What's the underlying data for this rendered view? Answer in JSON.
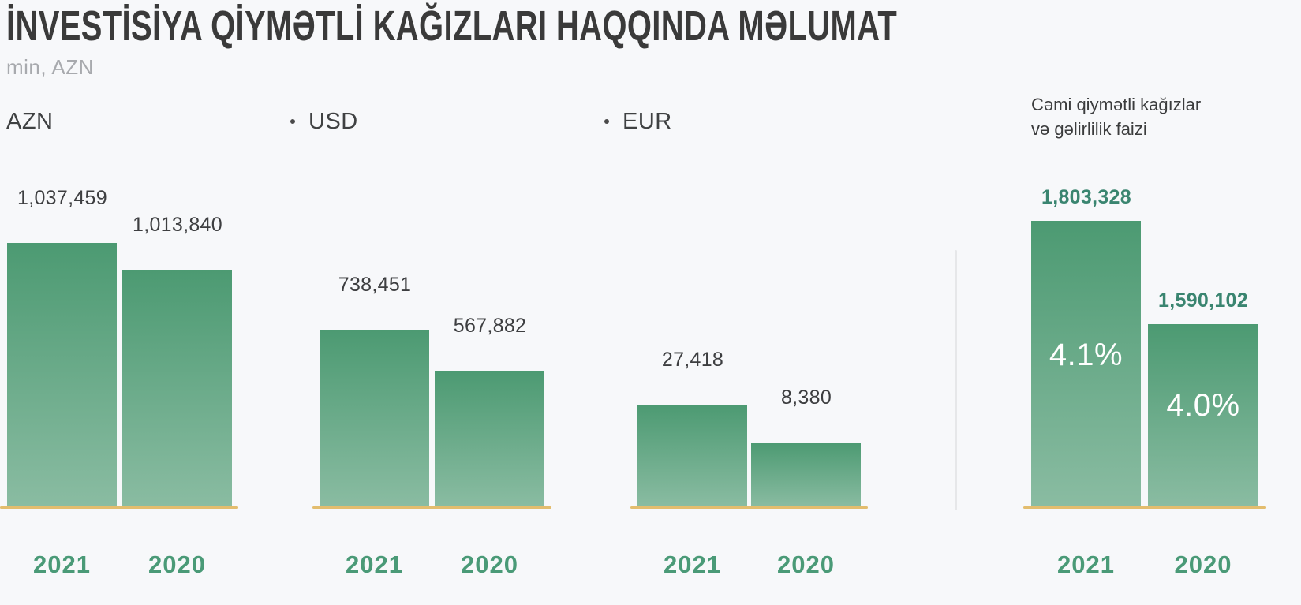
{
  "chart_data": {
    "type": "bar",
    "title": "İNVESTİSİYA QİYMƏTLİ KAĞIZLARI HAQQINDA MƏLUMAT",
    "units_label": "min, AZN",
    "categories": [
      "2021",
      "2020"
    ],
    "grid": false,
    "legend_position": "none",
    "groups": [
      {
        "label": "AZN",
        "has_bullet": false,
        "values": [
          1037459,
          1013840
        ],
        "value_labels": [
          "1,037,459",
          "1,013,840"
        ]
      },
      {
        "label": "USD",
        "has_bullet": true,
        "values": [
          738451,
          567882
        ],
        "value_labels": [
          "738,451",
          "567,882"
        ]
      },
      {
        "label": "EUR",
        "has_bullet": true,
        "values": [
          27418,
          8380
        ],
        "value_labels": [
          "27,418",
          "8,380"
        ]
      },
      {
        "label": "Cəmi qiymətli kağızlar və gəlirlilik faizi",
        "title_line1": "Cəmi qiymətli kağızlar",
        "title_line2": "və gəlirlilik faizi",
        "values": [
          1803328,
          1590102
        ],
        "value_labels": [
          "1,803,328",
          "1,590,102"
        ],
        "yield_percent": [
          4.1,
          4.0
        ],
        "pct_labels": [
          "4.1%",
          "4.0%"
        ]
      }
    ],
    "colors": {
      "background": "#f7f8fa",
      "bar_gradient_top": "#4c9a72",
      "bar_gradient_bottom": "#8abca2",
      "baseline": "#e3bd6e",
      "year_label": "#4a9a77",
      "value_label": "#3d3e40",
      "total_value_label": "#3a8570",
      "percent_text": "#ffffff",
      "title_text": "#3a3a3a",
      "units_text": "#a8aaae"
    }
  }
}
